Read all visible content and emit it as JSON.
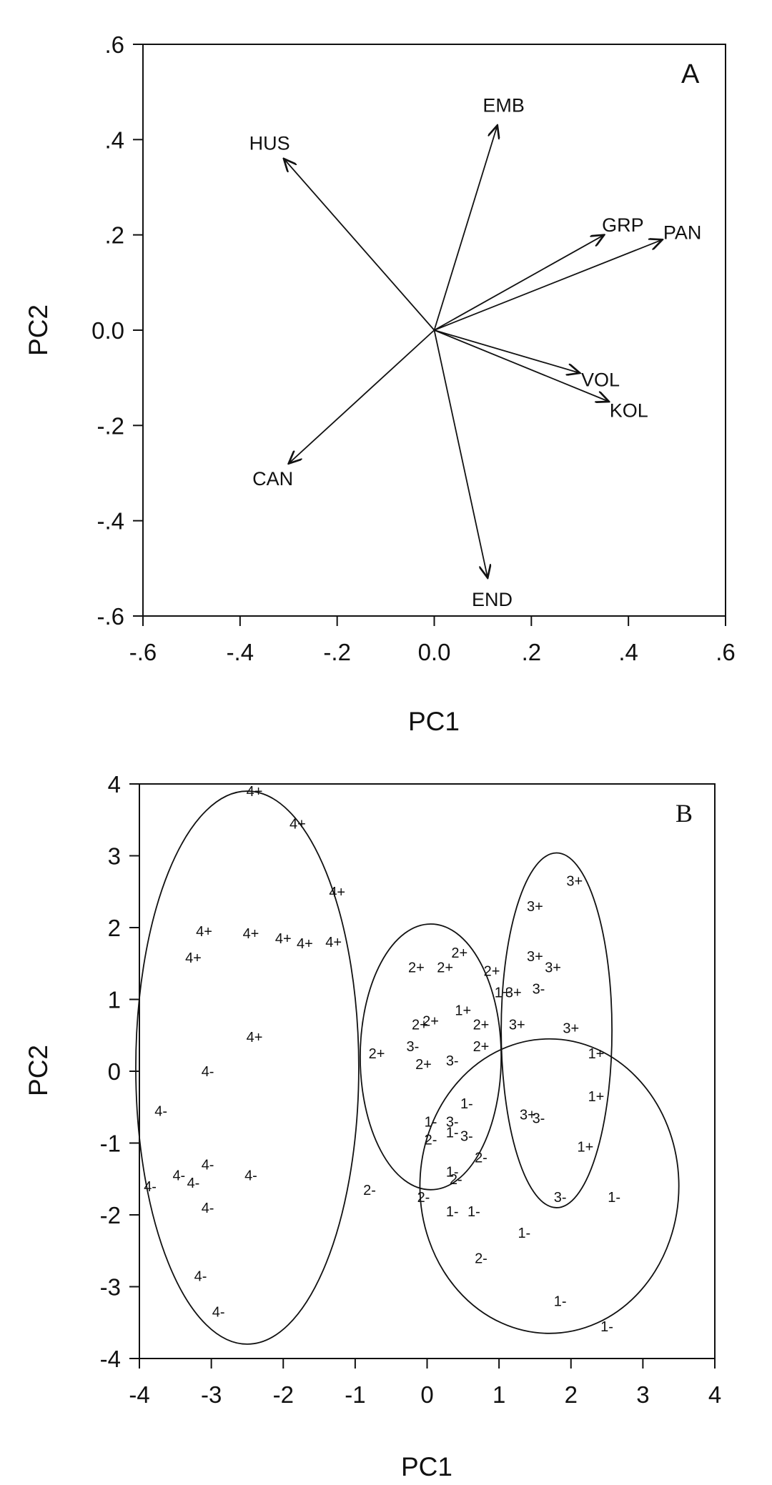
{
  "chart_data": [
    {
      "type": "scatter",
      "panel": "A",
      "xlabel": "PC1",
      "ylabel": "PC2",
      "xlim": [
        -0.6,
        0.6
      ],
      "ylim": [
        -0.6,
        0.6
      ],
      "xticks": [
        ".6",
        ".4",
        ".2",
        "0.0",
        ".2",
        ".4",
        ".6"
      ],
      "xtick_values": [
        -0.6,
        -0.4,
        -0.2,
        0.0,
        0.2,
        0.4,
        0.6
      ],
      "xtick_signs": [
        "-",
        "-",
        "-",
        "",
        "",
        "",
        ""
      ],
      "yticks": [
        ".6",
        ".4",
        ".2",
        "0.0",
        ".2",
        ".4",
        ".6"
      ],
      "ytick_values": [
        0.6,
        0.4,
        0.2,
        0.0,
        -0.2,
        -0.4,
        -0.6
      ],
      "ytick_signs": [
        "",
        "",
        "",
        "",
        "-",
        "-",
        "-"
      ],
      "grid": false,
      "vectors": [
        {
          "name": "EMB",
          "x": 0.13,
          "y": 0.43
        },
        {
          "name": "HUS",
          "x": -0.31,
          "y": 0.36
        },
        {
          "name": "GRP",
          "x": 0.35,
          "y": 0.2
        },
        {
          "name": "PAN",
          "x": 0.47,
          "y": 0.19
        },
        {
          "name": "VOL",
          "x": 0.3,
          "y": -0.09
        },
        {
          "name": "KOL",
          "x": 0.36,
          "y": -0.15
        },
        {
          "name": "CAN",
          "x": -0.3,
          "y": -0.28
        },
        {
          "name": "END",
          "x": 0.11,
          "y": -0.52
        }
      ]
    },
    {
      "type": "scatter",
      "panel": "B",
      "xlabel": "PC1",
      "ylabel": "PC2",
      "xlim": [
        -4,
        4
      ],
      "ylim": [
        -4,
        4
      ],
      "xticks": [
        "4",
        "3",
        "2",
        "1",
        "0",
        "1",
        "2",
        "3",
        "4"
      ],
      "xtick_values": [
        -4,
        -3,
        -2,
        -1,
        0,
        1,
        2,
        3,
        4
      ],
      "xtick_signs": [
        "-",
        "-",
        "-",
        "-",
        "",
        "",
        "",
        "",
        ""
      ],
      "yticks": [
        "4",
        "3",
        "2",
        "1",
        "0",
        "1",
        "2",
        "3",
        "4"
      ],
      "ytick_values": [
        4,
        3,
        2,
        1,
        0,
        -1,
        -2,
        -3,
        -4
      ],
      "ytick_signs": [
        "",
        "",
        "",
        "",
        "",
        "-",
        "-",
        "-",
        "-"
      ],
      "grid": false,
      "ellipses": [
        {
          "cx": -2.5,
          "cy": 0.05,
          "rx": 1.55,
          "ry": 3.85
        },
        {
          "cx": 0.05,
          "cy": 0.2,
          "rx": 0.98,
          "ry": 1.85
        },
        {
          "cx": 1.8,
          "cy": 0.57,
          "rx": 0.77,
          "ry": 2.47
        },
        {
          "cx": 1.7,
          "cy": -1.6,
          "rx": 1.8,
          "ry": 2.05
        }
      ],
      "points": [
        {
          "label": "4+",
          "x": -2.4,
          "y": 3.9
        },
        {
          "label": "4+",
          "x": -1.8,
          "y": 3.45
        },
        {
          "label": "4+",
          "x": -1.25,
          "y": 2.5
        },
        {
          "label": "4+",
          "x": -3.1,
          "y": 1.95
        },
        {
          "label": "4+",
          "x": -2.45,
          "y": 1.92
        },
        {
          "label": "4+",
          "x": -2.0,
          "y": 1.85
        },
        {
          "label": "4+",
          "x": -1.7,
          "y": 1.78
        },
        {
          "label": "4+",
          "x": -1.3,
          "y": 1.8
        },
        {
          "label": "4+",
          "x": -3.25,
          "y": 1.58
        },
        {
          "label": "4+",
          "x": -2.4,
          "y": 0.48
        },
        {
          "label": "4-",
          "x": -3.05,
          "y": 0.0
        },
        {
          "label": "4-",
          "x": -3.7,
          "y": -0.55
        },
        {
          "label": "4-",
          "x": -3.05,
          "y": -1.3
        },
        {
          "label": "4-",
          "x": -2.45,
          "y": -1.45
        },
        {
          "label": "4-",
          "x": -3.45,
          "y": -1.45
        },
        {
          "label": "4-",
          "x": -3.25,
          "y": -1.55
        },
        {
          "label": "4-",
          "x": -3.85,
          "y": -1.6
        },
        {
          "label": "4-",
          "x": -3.05,
          "y": -1.9
        },
        {
          "label": "4-",
          "x": -3.15,
          "y": -2.85
        },
        {
          "label": "4-",
          "x": -2.9,
          "y": -3.35
        },
        {
          "label": "2+",
          "x": 0.45,
          "y": 1.65
        },
        {
          "label": "2+",
          "x": -0.15,
          "y": 1.45
        },
        {
          "label": "2+",
          "x": 0.25,
          "y": 1.45
        },
        {
          "label": "2+",
          "x": 0.05,
          "y": 0.7
        },
        {
          "label": "2+",
          "x": -0.1,
          "y": 0.65
        },
        {
          "label": "2+",
          "x": 0.75,
          "y": 0.65
        },
        {
          "label": "2+",
          "x": 0.75,
          "y": 0.35
        },
        {
          "label": "2+",
          "x": -0.7,
          "y": 0.25
        },
        {
          "label": "2+",
          "x": -0.05,
          "y": 0.1
        },
        {
          "label": "1+",
          "x": 0.5,
          "y": 0.85
        },
        {
          "label": "3-",
          "x": -0.2,
          "y": 0.35
        },
        {
          "label": "3-",
          "x": 0.35,
          "y": 0.15
        },
        {
          "label": "2+",
          "x": 0.9,
          "y": 1.4
        },
        {
          "label": "1+",
          "x": 1.05,
          "y": 1.1
        },
        {
          "label": "3+",
          "x": 1.5,
          "y": 2.3
        },
        {
          "label": "3+",
          "x": 2.05,
          "y": 2.65
        },
        {
          "label": "3+",
          "x": 1.5,
          "y": 1.6
        },
        {
          "label": "3+",
          "x": 1.75,
          "y": 1.45
        },
        {
          "label": "3-",
          "x": 1.55,
          "y": 1.15
        },
        {
          "label": "3+",
          "x": 1.2,
          "y": 1.1
        },
        {
          "label": "3+",
          "x": 1.25,
          "y": 0.65
        },
        {
          "label": "3+",
          "x": 2.0,
          "y": 0.6
        },
        {
          "label": "1+",
          "x": 2.35,
          "y": 0.25
        },
        {
          "label": "1+",
          "x": 2.35,
          "y": -0.35
        },
        {
          "label": "1+",
          "x": 2.2,
          "y": -1.05
        },
        {
          "label": "3+",
          "x": 1.4,
          "y": -0.6
        },
        {
          "label": "3-",
          "x": 1.55,
          "y": -0.65
        },
        {
          "label": "3-",
          "x": 1.85,
          "y": -1.75
        },
        {
          "label": "1-",
          "x": 2.6,
          "y": -1.75
        },
        {
          "label": "1-",
          "x": 1.35,
          "y": -2.25
        },
        {
          "label": "1-",
          "x": 1.85,
          "y": -3.2
        },
        {
          "label": "1-",
          "x": 2.5,
          "y": -3.55
        },
        {
          "label": "1-",
          "x": 0.55,
          "y": -0.45
        },
        {
          "label": "1-",
          "x": 0.05,
          "y": -0.7
        },
        {
          "label": "3-",
          "x": 0.35,
          "y": -0.7
        },
        {
          "label": "1-",
          "x": 0.35,
          "y": -0.85
        },
        {
          "label": "3-",
          "x": 0.55,
          "y": -0.9
        },
        {
          "label": "2-",
          "x": 0.05,
          "y": -0.95
        },
        {
          "label": "2-",
          "x": 0.75,
          "y": -1.2
        },
        {
          "label": "1-",
          "x": 0.35,
          "y": -1.4
        },
        {
          "label": "2-",
          "x": 0.4,
          "y": -1.5
        },
        {
          "label": "2-",
          "x": -0.8,
          "y": -1.65
        },
        {
          "label": "2-",
          "x": -0.05,
          "y": -1.75
        },
        {
          "label": "1-",
          "x": 0.35,
          "y": -1.95
        },
        {
          "label": "1-",
          "x": 0.65,
          "y": -1.95
        },
        {
          "label": "2-",
          "x": 0.75,
          "y": -2.6
        }
      ]
    }
  ],
  "panel_a_letter": "A",
  "panel_b_letter": "B"
}
